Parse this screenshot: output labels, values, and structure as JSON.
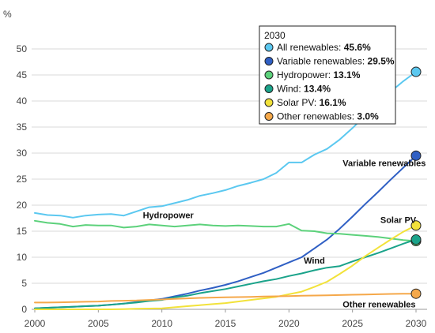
{
  "chart_data": {
    "type": "line",
    "ylabel": "%",
    "ylim": [
      0,
      50
    ],
    "xlim": [
      2000,
      2030
    ],
    "yticks": [
      0,
      5,
      10,
      15,
      20,
      25,
      30,
      35,
      40,
      45,
      50
    ],
    "xticks": [
      2000,
      2005,
      2010,
      2015,
      2020,
      2025,
      2030
    ],
    "grid": "horizontal",
    "legend": {
      "title": "2030",
      "placement": "top-right"
    },
    "x": [
      2000,
      2001,
      2002,
      2003,
      2004,
      2005,
      2006,
      2007,
      2008,
      2009,
      2010,
      2011,
      2012,
      2013,
      2014,
      2015,
      2016,
      2017,
      2018,
      2019,
      2020,
      2021,
      2022,
      2023,
      2024,
      2025,
      2026,
      2027,
      2028,
      2029,
      2030
    ],
    "series": [
      {
        "name": "All renewables",
        "legend_label": "All renewables: ",
        "legend_value": "45.6%",
        "end_value": 45.6,
        "color": "#5bc8f0",
        "values": [
          18.5,
          18.1,
          18.0,
          17.6,
          18.0,
          18.2,
          18.3,
          18.0,
          18.8,
          19.6,
          19.8,
          20.4,
          21.0,
          21.8,
          22.3,
          22.9,
          23.7,
          24.3,
          25.0,
          26.2,
          28.2,
          28.2,
          29.7,
          30.8,
          32.6,
          34.8,
          37.2,
          39.6,
          41.8,
          43.8,
          45.6
        ]
      },
      {
        "name": "Variable renewables",
        "legend_label": "Variable renewables: ",
        "legend_value": "29.5%",
        "end_value": 29.5,
        "color": "#2f5fc4",
        "annotation": "Variable renewables",
        "values": [
          0.2,
          0.3,
          0.4,
          0.5,
          0.6,
          0.7,
          0.9,
          1.1,
          1.4,
          1.7,
          2.0,
          2.5,
          3.0,
          3.6,
          4.1,
          4.7,
          5.4,
          6.2,
          7.0,
          8.0,
          9.0,
          10.0,
          11.7,
          13.4,
          15.5,
          17.8,
          20.2,
          22.5,
          24.9,
          27.2,
          29.5
        ]
      },
      {
        "name": "Hydropower",
        "legend_label": "Hydropower: ",
        "legend_value": "13.1%",
        "end_value": 13.1,
        "color": "#5cd17b",
        "annotation": "Hydropower",
        "values": [
          17.0,
          16.6,
          16.4,
          15.9,
          16.2,
          16.1,
          16.1,
          15.7,
          15.9,
          16.3,
          16.1,
          15.9,
          16.1,
          16.3,
          16.1,
          16.0,
          16.1,
          16.0,
          15.9,
          15.9,
          16.4,
          15.1,
          15.0,
          14.6,
          14.5,
          14.3,
          14.1,
          13.9,
          13.6,
          13.3,
          13.1
        ]
      },
      {
        "name": "Wind",
        "legend_label": "Wind: ",
        "legend_value": "13.4%",
        "end_value": 13.4,
        "color": "#1aa38a",
        "annotation": "Wind",
        "values": [
          0.2,
          0.3,
          0.4,
          0.5,
          0.6,
          0.7,
          0.9,
          1.1,
          1.3,
          1.6,
          1.8,
          2.3,
          2.6,
          3.1,
          3.5,
          3.9,
          4.4,
          4.9,
          5.4,
          5.8,
          6.4,
          6.9,
          7.5,
          8.0,
          8.3,
          9.2,
          10.0,
          10.8,
          11.7,
          12.6,
          13.4
        ]
      },
      {
        "name": "Solar PV",
        "legend_label": "Solar PV: ",
        "legend_value": "16.1%",
        "end_value": 16.1,
        "color": "#f2e23a",
        "annotation": "Solar PV",
        "values": [
          0.0,
          0.0,
          0.0,
          0.0,
          0.0,
          0.0,
          0.0,
          0.05,
          0.1,
          0.15,
          0.2,
          0.4,
          0.6,
          0.8,
          1.0,
          1.2,
          1.5,
          1.8,
          2.1,
          2.4,
          2.9,
          3.4,
          4.3,
          5.3,
          6.8,
          8.4,
          10.2,
          11.8,
          13.4,
          14.9,
          16.1
        ]
      },
      {
        "name": "Other renewables",
        "legend_label": "Other renewables: ",
        "legend_value": "3.0%",
        "end_value": 3.0,
        "color": "#f5a84a",
        "annotation": "Other renewables",
        "values": [
          1.3,
          1.3,
          1.35,
          1.4,
          1.45,
          1.5,
          1.6,
          1.65,
          1.7,
          1.8,
          1.9,
          2.0,
          2.1,
          2.2,
          2.25,
          2.3,
          2.35,
          2.4,
          2.45,
          2.5,
          2.55,
          2.6,
          2.65,
          2.7,
          2.75,
          2.8,
          2.85,
          2.9,
          2.95,
          3.0,
          3.0
        ]
      }
    ]
  }
}
